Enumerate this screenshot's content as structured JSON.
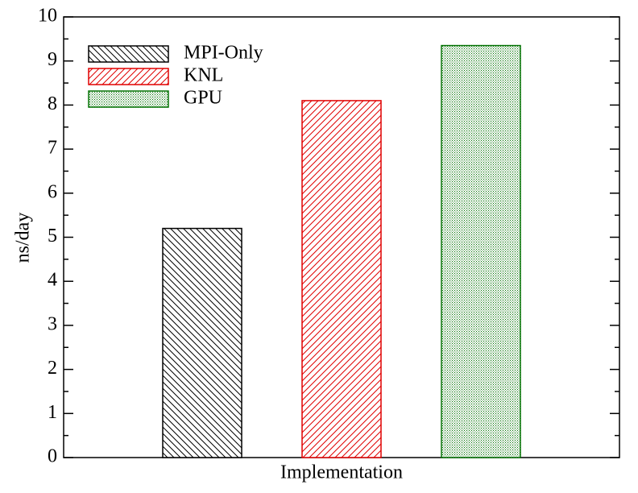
{
  "chart_data": {
    "type": "bar",
    "categories": [
      null
    ],
    "x_label": "Implementation",
    "y_label": "ns/day",
    "series": [
      {
        "name": "MPI-Only",
        "color": "#000000",
        "hatch": "backslash",
        "values": [
          5.2
        ]
      },
      {
        "name": "KNL",
        "color": "#e00000",
        "hatch": "slash",
        "values": [
          8.1
        ]
      },
      {
        "name": "GPU",
        "color": "#007000",
        "hatch": "dots",
        "values": [
          9.35
        ]
      }
    ],
    "ylim": [
      0,
      10
    ],
    "yticks": [
      0,
      1,
      2,
      3,
      4,
      5,
      6,
      7,
      8,
      9,
      10
    ],
    "legend": "upper left"
  }
}
